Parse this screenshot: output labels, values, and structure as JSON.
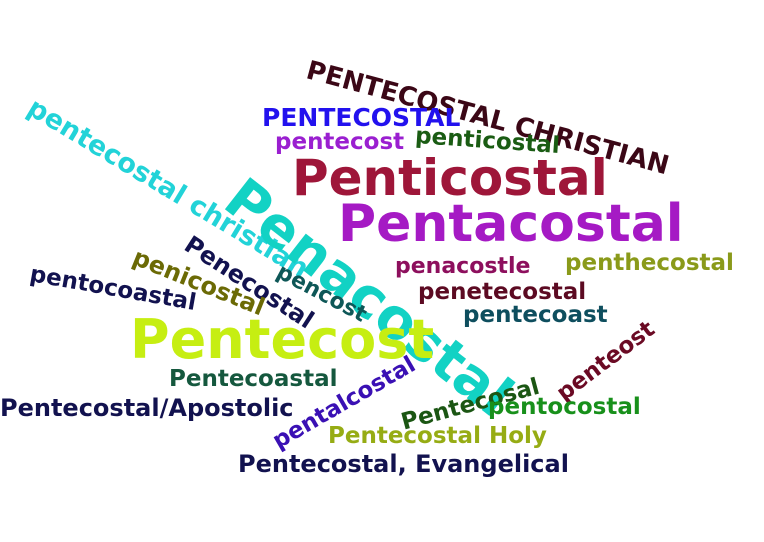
{
  "words": [
    {
      "text": "PENTECOSTAL CHRISTIAN",
      "color": "#3b0716"
    },
    {
      "text": "PENTECOSTAL",
      "color": "#2211ee"
    },
    {
      "text": "pentecostal christian",
      "color": "#22d3d8"
    },
    {
      "text": "pentecost",
      "color": "#9a1fd0"
    },
    {
      "text": "penticostal",
      "color": "#1a5c13"
    },
    {
      "text": "Penticostal",
      "color": "#9e1639"
    },
    {
      "text": "Pentacostal",
      "color": "#a51ac4"
    },
    {
      "text": "Penacostal",
      "color": "#12d2c4"
    },
    {
      "text": "Penecostal",
      "color": "#12124f"
    },
    {
      "text": "penicostal",
      "color": "#6b6a05"
    },
    {
      "text": "pencost",
      "color": "#0e5757"
    },
    {
      "text": "penacostle",
      "color": "#8d0f5d"
    },
    {
      "text": "penthecostal",
      "color": "#8a9a1a"
    },
    {
      "text": "pentocoastal",
      "color": "#12124f"
    },
    {
      "text": "penetecostal",
      "color": "#5c0a22"
    },
    {
      "text": "pentecoast",
      "color": "#0e4e5e"
    },
    {
      "text": "penteost",
      "color": "#6b0a24"
    },
    {
      "text": "Pentecost",
      "color": "#c6ee12"
    },
    {
      "text": "Pentecoastal",
      "color": "#15583e"
    },
    {
      "text": "pentalcostal",
      "color": "#3a10b4"
    },
    {
      "text": "Pentecosal",
      "color": "#1b5613"
    },
    {
      "text": "Pentecostal/Apostolic",
      "color": "#12124f"
    },
    {
      "text": "pentocostal",
      "color": "#18901b"
    },
    {
      "text": "Pentecostal Holy",
      "color": "#96ac14"
    },
    {
      "text": "Pentecostal, Evangelical",
      "color": "#12124f"
    }
  ]
}
